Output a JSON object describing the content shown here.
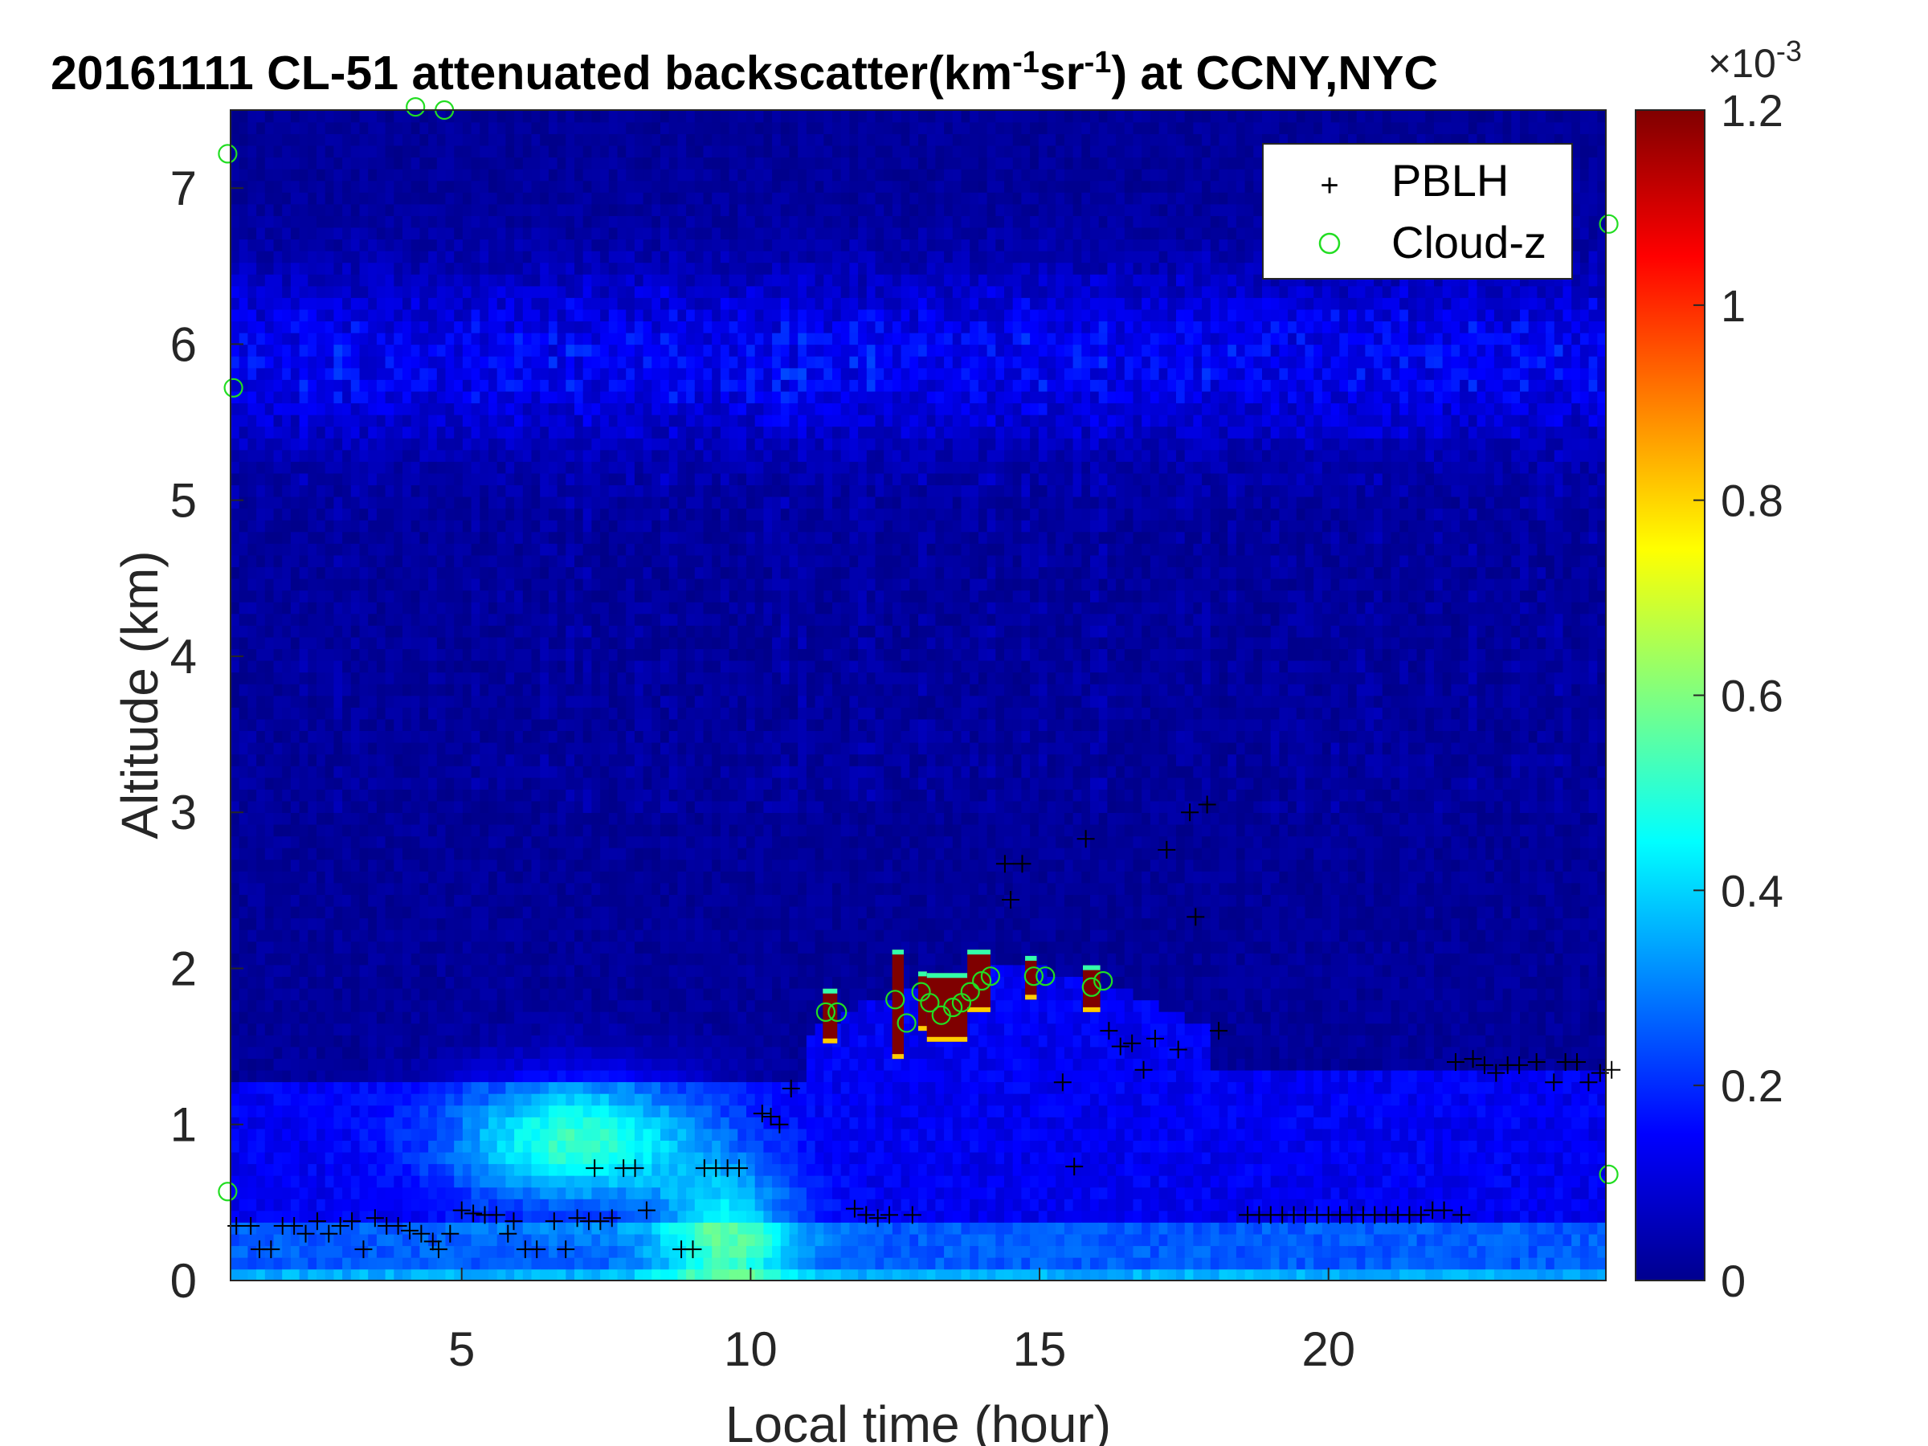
{
  "figure": {
    "title": "20161111  CL-51 attenuated backscatter(km",
    "title_sup1": "-1",
    "title_mid": "sr",
    "title_sup2": "-1",
    "title_end": ") at CCNY,NYC"
  },
  "chart_data": {
    "type": "heatmap",
    "title": "20161111  CL-51 attenuated backscatter(km^-1 sr^-1) at CCNY,NYC",
    "xlabel": "Local time (hour)",
    "ylabel": "Altitude (km)",
    "xlim": [
      1.0,
      24.8
    ],
    "ylim": [
      0,
      7.5
    ],
    "x_ticks": [
      5,
      10,
      15,
      20
    ],
    "y_ticks": [
      0,
      1,
      2,
      3,
      4,
      5,
      6,
      7
    ],
    "colorbar": {
      "colormap": "jet",
      "range": [
        0,
        1.2
      ],
      "ticks": [
        0,
        0.2,
        0.4,
        0.6,
        0.8,
        1,
        1.2
      ],
      "tick_labels": [
        "0",
        "0.2",
        "0.4",
        "0.6",
        "0.8",
        "1",
        "1.2"
      ],
      "multiplier_base": "×10",
      "multiplier_exp": "-3"
    },
    "legend": {
      "placement": "top-right",
      "entries": [
        {
          "label": "PBLH",
          "marker": "+",
          "color": "#000000"
        },
        {
          "label": "Cloud-z",
          "marker": "o",
          "color": "#00cc00"
        }
      ]
    },
    "colors": {
      "pblh_marker": "#000000",
      "cloud_marker": "#22dd22",
      "cloud_core": "#7f0000"
    },
    "field_description": {
      "background_level": 0.02,
      "aerosol_layer_level": 0.12,
      "mixed_layer_peak": {
        "time": 7.0,
        "altitude": 0.9,
        "value": 0.45
      }
    },
    "cloud_blocks": [
      {
        "time": [
          11.25,
          11.5
        ],
        "altitude": [
          1.52,
          1.87
        ]
      },
      {
        "time": [
          12.45,
          12.65
        ],
        "altitude": [
          1.42,
          2.12
        ]
      },
      {
        "time": [
          12.9,
          13.05
        ],
        "altitude": [
          1.6,
          1.98
        ]
      },
      {
        "time": [
          13.05,
          13.75
        ],
        "altitude": [
          1.53,
          1.97
        ]
      },
      {
        "time": [
          13.75,
          14.15
        ],
        "altitude": [
          1.72,
          2.12
        ]
      },
      {
        "time": [
          14.75,
          14.95
        ],
        "altitude": [
          1.8,
          2.08
        ]
      },
      {
        "time": [
          15.75,
          16.05
        ],
        "altitude": [
          1.72,
          2.02
        ]
      }
    ],
    "series": [
      {
        "name": "PBLH",
        "marker": "+",
        "points": [
          [
            1.1,
            0.35
          ],
          [
            1.35,
            0.35
          ],
          [
            1.5,
            0.2
          ],
          [
            1.7,
            0.2
          ],
          [
            1.9,
            0.35
          ],
          [
            2.1,
            0.35
          ],
          [
            2.3,
            0.3
          ],
          [
            2.5,
            0.38
          ],
          [
            2.7,
            0.3
          ],
          [
            2.9,
            0.35
          ],
          [
            3.1,
            0.38
          ],
          [
            3.3,
            0.2
          ],
          [
            3.5,
            0.4
          ],
          [
            3.7,
            0.35
          ],
          [
            3.9,
            0.35
          ],
          [
            4.1,
            0.32
          ],
          [
            4.3,
            0.3
          ],
          [
            4.5,
            0.25
          ],
          [
            4.6,
            0.2
          ],
          [
            4.8,
            0.3
          ],
          [
            5.0,
            0.45
          ],
          [
            5.2,
            0.43
          ],
          [
            5.4,
            0.42
          ],
          [
            5.6,
            0.42
          ],
          [
            5.8,
            0.3
          ],
          [
            5.9,
            0.38
          ],
          [
            6.1,
            0.2
          ],
          [
            6.3,
            0.2
          ],
          [
            6.6,
            0.38
          ],
          [
            6.8,
            0.2
          ],
          [
            7.0,
            0.4
          ],
          [
            7.2,
            0.38
          ],
          [
            7.4,
            0.38
          ],
          [
            7.6,
            0.4
          ],
          [
            7.3,
            0.72
          ],
          [
            7.8,
            0.72
          ],
          [
            8.0,
            0.72
          ],
          [
            8.2,
            0.45
          ],
          [
            8.8,
            0.2
          ],
          [
            9.0,
            0.2
          ],
          [
            9.2,
            0.72
          ],
          [
            9.4,
            0.72
          ],
          [
            9.6,
            0.72
          ],
          [
            9.8,
            0.72
          ],
          [
            10.2,
            1.07
          ],
          [
            10.35,
            1.05
          ],
          [
            10.5,
            1.0
          ],
          [
            10.7,
            1.23
          ],
          [
            11.8,
            0.46
          ],
          [
            12.0,
            0.42
          ],
          [
            12.2,
            0.4
          ],
          [
            12.4,
            0.42
          ],
          [
            12.8,
            0.42
          ],
          [
            14.5,
            2.44
          ],
          [
            14.4,
            2.67
          ],
          [
            14.7,
            2.67
          ],
          [
            15.4,
            1.27
          ],
          [
            15.6,
            0.73
          ],
          [
            15.8,
            2.83
          ],
          [
            16.2,
            1.6
          ],
          [
            16.4,
            1.5
          ],
          [
            16.6,
            1.52
          ],
          [
            16.8,
            1.35
          ],
          [
            17.0,
            1.55
          ],
          [
            17.2,
            2.76
          ],
          [
            17.4,
            1.48
          ],
          [
            17.6,
            3.0
          ],
          [
            17.7,
            2.33
          ],
          [
            17.9,
            3.05
          ],
          [
            18.1,
            1.6
          ],
          [
            18.6,
            0.42
          ],
          [
            18.8,
            0.42
          ],
          [
            19.0,
            0.42
          ],
          [
            19.2,
            0.42
          ],
          [
            19.4,
            0.42
          ],
          [
            19.6,
            0.42
          ],
          [
            19.8,
            0.42
          ],
          [
            20.0,
            0.42
          ],
          [
            20.2,
            0.42
          ],
          [
            20.4,
            0.42
          ],
          [
            20.6,
            0.42
          ],
          [
            20.8,
            0.42
          ],
          [
            21.0,
            0.42
          ],
          [
            21.2,
            0.42
          ],
          [
            21.4,
            0.42
          ],
          [
            21.6,
            0.42
          ],
          [
            21.8,
            0.45
          ],
          [
            22.0,
            0.45
          ],
          [
            22.3,
            0.42
          ],
          [
            22.2,
            1.4
          ],
          [
            22.5,
            1.42
          ],
          [
            22.7,
            1.38
          ],
          [
            22.9,
            1.33
          ],
          [
            23.1,
            1.38
          ],
          [
            23.3,
            1.38
          ],
          [
            23.6,
            1.4
          ],
          [
            23.9,
            1.27
          ],
          [
            24.1,
            1.4
          ],
          [
            24.3,
            1.4
          ],
          [
            24.5,
            1.27
          ],
          [
            24.7,
            1.33
          ],
          [
            24.9,
            1.35
          ]
        ]
      },
      {
        "name": "Cloud-z",
        "marker": "o",
        "points": [
          [
            11.3,
            1.72
          ],
          [
            11.5,
            1.72
          ],
          [
            12.5,
            1.8
          ],
          [
            12.7,
            1.65
          ],
          [
            12.95,
            1.85
          ],
          [
            13.1,
            1.78
          ],
          [
            13.3,
            1.7
          ],
          [
            13.5,
            1.75
          ],
          [
            13.65,
            1.78
          ],
          [
            13.8,
            1.85
          ],
          [
            14.0,
            1.92
          ],
          [
            14.15,
            1.95
          ],
          [
            14.9,
            1.95
          ],
          [
            15.1,
            1.95
          ],
          [
            15.9,
            1.88
          ],
          [
            16.1,
            1.92
          ],
          [
            0.95,
            7.22
          ],
          [
            4.2,
            7.52
          ],
          [
            4.7,
            7.5
          ],
          [
            1.05,
            5.72
          ],
          [
            24.85,
            6.77
          ],
          [
            24.85,
            0.68
          ],
          [
            0.95,
            0.57
          ]
        ]
      }
    ]
  }
}
